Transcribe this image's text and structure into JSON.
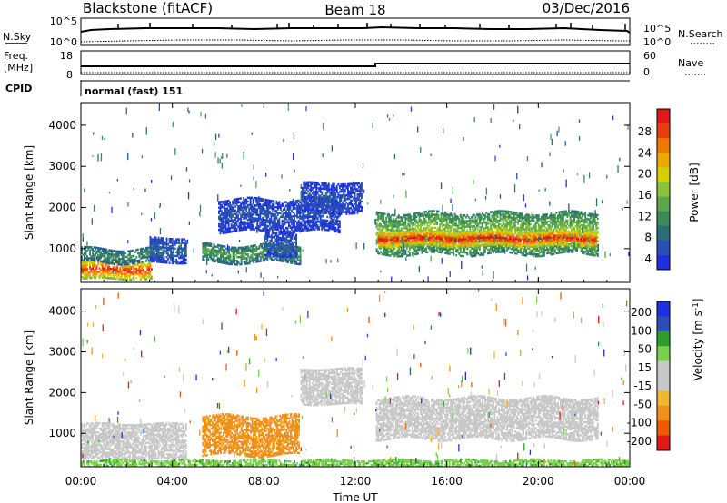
{
  "header": {
    "station": "Blackstone (fitACF)",
    "beam": "Beam 18",
    "date": "03/Dec/2016"
  },
  "noise_panel": {
    "left_label": "N.Sky",
    "right_label": "N.Search",
    "left_ticks": [
      "10^5",
      "10^0"
    ],
    "right_ticks": [
      "10^5",
      "10^0"
    ]
  },
  "freq_panel": {
    "left_label_1": "Freq.",
    "left_label_2": "[MHz]",
    "right_label": "Nave",
    "left_ticks": [
      "18",
      "8"
    ],
    "right_ticks": [
      "60",
      "0"
    ]
  },
  "cpid": {
    "label": "CPID",
    "value": "normal (fast) 151"
  },
  "colors": {
    "power_scale": [
      "#1e2fe6",
      "#2a4fb8",
      "#2a6e7a",
      "#3c8a5a",
      "#5aa84a",
      "#8ac23a",
      "#d4d000",
      "#f0a800",
      "#f07800",
      "#e83e10",
      "#e01818"
    ],
    "velocity_scale": [
      "#e01818",
      "#f05a00",
      "#f09018",
      "#f0b830",
      "#c8c8c8",
      "#c8c8c8",
      "#7ad04a",
      "#2aa02a",
      "#2a4fb8",
      "#1e2fe6"
    ]
  },
  "chart_data": [
    {
      "type": "heatmap",
      "name": "power",
      "xlabel": "",
      "ylabel": "Slant Range [km]",
      "colorbar_label": "Power [dB]",
      "colorbar_ticks": [
        "28",
        "24",
        "20",
        "16",
        "12",
        "8",
        "4"
      ],
      "x_ticks": [
        "00:00",
        "04:00",
        "08:00",
        "12:00",
        "16:00",
        "20:00",
        "00:00"
      ],
      "y_ticks": [
        "4000",
        "3000",
        "2000",
        "1000"
      ],
      "xlim": [
        0,
        24
      ],
      "ylim": [
        180,
        4550
      ],
      "echo_bands": [
        {
          "t": [
            0.0,
            3.1
          ],
          "range_lo": 250,
          "range_hi": 700,
          "power_db": 26
        },
        {
          "t": [
            0.0,
            3.6
          ],
          "range_lo": 650,
          "range_hi": 1000,
          "power_db": 10
        },
        {
          "t": [
            3.0,
            4.6
          ],
          "range_lo": 650,
          "range_hi": 1250,
          "power_db": 6
        },
        {
          "t": [
            5.3,
            9.6
          ],
          "range_lo": 650,
          "range_hi": 1100,
          "power_db": 12
        },
        {
          "t": [
            8.0,
            9.4
          ],
          "range_lo": 800,
          "range_hi": 1350,
          "power_db": 6
        },
        {
          "t": [
            6.0,
            11.3
          ],
          "range_lo": 1400,
          "range_hi": 2200,
          "power_db": 5
        },
        {
          "t": [
            9.6,
            12.3
          ],
          "range_lo": 1850,
          "range_hi": 2600,
          "power_db": 5
        },
        {
          "t": [
            12.9,
            22.6
          ],
          "range_lo": 850,
          "range_hi": 1850,
          "power_db": 16
        },
        {
          "t": [
            13.0,
            22.5
          ],
          "range_lo": 1050,
          "range_hi": 1400,
          "power_db": 28
        }
      ]
    },
    {
      "type": "heatmap",
      "name": "velocity",
      "xlabel": "Time UT",
      "ylabel": "Slant Range [km]",
      "colorbar_label": "Velocity [m s^-1]",
      "colorbar_ticks": [
        "200",
        "100",
        "50",
        "15",
        "-15",
        "-50",
        "-100",
        "-200"
      ],
      "x_ticks": [
        "00:00",
        "04:00",
        "08:00",
        "12:00",
        "16:00",
        "20:00",
        "00:00"
      ],
      "y_ticks": [
        "4000",
        "3000",
        "2000",
        "1000"
      ],
      "xlim": [
        0,
        24
      ],
      "ylim": [
        180,
        4550
      ],
      "echo_bands": [
        {
          "t": [
            0.0,
            4.6
          ],
          "range_lo": 350,
          "range_hi": 1250,
          "velocity": 0
        },
        {
          "t": [
            5.3,
            9.5
          ],
          "range_lo": 450,
          "range_hi": 1400,
          "velocity": -40
        },
        {
          "t": [
            9.6,
            12.3
          ],
          "range_lo": 1700,
          "range_hi": 2600,
          "velocity": 0
        },
        {
          "t": [
            12.9,
            22.6
          ],
          "range_lo": 850,
          "range_hi": 1850,
          "velocity": 0
        },
        {
          "t": [
            0.0,
            24.0
          ],
          "range_lo": 180,
          "range_hi": 330,
          "velocity": 25
        }
      ]
    }
  ]
}
